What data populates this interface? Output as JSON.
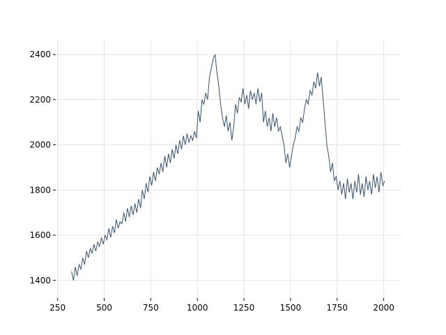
{
  "chart_data": {
    "type": "line",
    "x": [
      325,
      335,
      345,
      355,
      365,
      375,
      385,
      395,
      405,
      415,
      425,
      435,
      445,
      455,
      465,
      475,
      485,
      495,
      505,
      515,
      525,
      535,
      545,
      555,
      565,
      575,
      585,
      595,
      605,
      615,
      625,
      635,
      645,
      655,
      665,
      675,
      685,
      695,
      705,
      715,
      725,
      735,
      745,
      755,
      765,
      775,
      785,
      795,
      805,
      815,
      825,
      835,
      845,
      855,
      865,
      875,
      885,
      895,
      905,
      915,
      925,
      935,
      945,
      955,
      965,
      975,
      985,
      995,
      1005,
      1015,
      1025,
      1035,
      1045,
      1055,
      1065,
      1075,
      1085,
      1095,
      1105,
      1115,
      1125,
      1135,
      1145,
      1155,
      1165,
      1175,
      1185,
      1195,
      1205,
      1215,
      1225,
      1235,
      1245,
      1255,
      1265,
      1275,
      1285,
      1295,
      1305,
      1315,
      1325,
      1335,
      1345,
      1355,
      1365,
      1375,
      1385,
      1395,
      1405,
      1415,
      1425,
      1435,
      1445,
      1455,
      1465,
      1475,
      1485,
      1495,
      1505,
      1515,
      1525,
      1535,
      1545,
      1555,
      1565,
      1575,
      1585,
      1595,
      1605,
      1615,
      1625,
      1635,
      1645,
      1655,
      1665,
      1675,
      1685,
      1695,
      1705,
      1715,
      1725,
      1735,
      1745,
      1755,
      1765,
      1775,
      1785,
      1795,
      1805,
      1815,
      1825,
      1835,
      1845,
      1855,
      1865,
      1875,
      1885,
      1895,
      1905,
      1915,
      1925,
      1935,
      1945,
      1955,
      1965,
      1975,
      1985,
      1995,
      2005
    ],
    "series": [
      {
        "color": "#34506f",
        "values": [
          1440,
          1400,
          1460,
          1420,
          1470,
          1450,
          1500,
          1470,
          1530,
          1500,
          1540,
          1520,
          1560,
          1530,
          1570,
          1550,
          1590,
          1560,
          1600,
          1580,
          1630,
          1590,
          1640,
          1610,
          1670,
          1630,
          1660,
          1650,
          1700,
          1660,
          1720,
          1680,
          1730,
          1690,
          1740,
          1700,
          1760,
          1720,
          1800,
          1760,
          1830,
          1790,
          1860,
          1820,
          1880,
          1840,
          1900,
          1870,
          1920,
          1880,
          1950,
          1900,
          1960,
          1920,
          1980,
          1940,
          2000,
          1960,
          2020,
          1980,
          2040,
          2000,
          2050,
          2010,
          2040,
          2020,
          2060,
          2030,
          2150,
          2100,
          2200,
          2180,
          2230,
          2200,
          2300,
          2340,
          2380,
          2400,
          2320,
          2260,
          2180,
          2120,
          2080,
          2130,
          2060,
          2100,
          2020,
          2080,
          2180,
          2140,
          2210,
          2190,
          2250,
          2180,
          2220,
          2160,
          2240,
          2200,
          2230,
          2180,
          2250,
          2190,
          2230,
          2100,
          2150,
          2080,
          2120,
          2060,
          2140,
          2080,
          2120,
          2060,
          2080,
          2040,
          2000,
          1920,
          1960,
          1900,
          1950,
          2000,
          2030,
          2080,
          2060,
          2120,
          2100,
          2160,
          2200,
          2180,
          2240,
          2220,
          2280,
          2250,
          2320,
          2260,
          2300,
          2200,
          2100,
          2000,
          1950,
          1880,
          1920,
          1840,
          1860,
          1800,
          1840,
          1780,
          1830,
          1760,
          1850,
          1790,
          1830,
          1760,
          1840,
          1790,
          1870,
          1780,
          1830,
          1770,
          1860,
          1800,
          1840,
          1780,
          1870,
          1810,
          1860,
          1790,
          1880,
          1820,
          1840
        ]
      }
    ],
    "xlim": [
      240,
      2095
    ],
    "xticks": [
      250,
      500,
      750,
      1000,
      1250,
      1500,
      1750,
      2000
    ],
    "ylim": [
      1322,
      2462
    ],
    "yticks": [
      1400,
      1600,
      1800,
      2000,
      2200,
      2400
    ],
    "grid": true
  }
}
